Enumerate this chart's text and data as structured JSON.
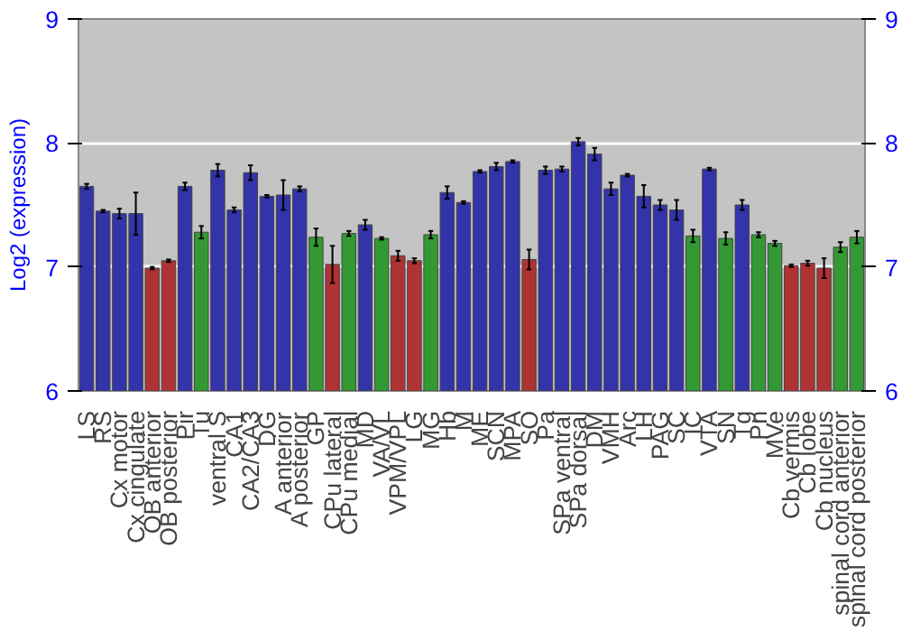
{
  "chart_data": {
    "type": "bar",
    "ylabel": "Log2 (expression)",
    "categories": [
      "LS",
      "RS",
      "Cx motor",
      "Cx cingulate",
      "OB anterior",
      "OB posterior",
      "Pir",
      "Tu",
      "ventral S",
      "CA1",
      "CA2/CA3",
      "DG",
      "A anterior",
      "A posterior",
      "GP",
      "CPu lateral",
      "CPu medial",
      "MD",
      "VA/VL",
      "VPM/VPL",
      "LG",
      "MG",
      "Hb",
      "M",
      "ME",
      "SCN",
      "MPA",
      "SO",
      "Pa",
      "SPa ventral",
      "SPa dorsal",
      "DM",
      "VMH",
      "Arc",
      "LH",
      "PAG",
      "SC",
      "IC",
      "VTA",
      "SN",
      "Tg",
      "Pn",
      "MVe",
      "Cb vermis",
      "Cb lobe",
      "Cb nucleus",
      "spinal cord anterior",
      "spinal cord posterior"
    ],
    "values": [
      7.65,
      7.45,
      7.43,
      7.43,
      6.99,
      7.05,
      7.65,
      7.28,
      7.78,
      7.46,
      7.76,
      7.57,
      7.58,
      7.63,
      7.24,
      7.02,
      7.27,
      7.34,
      7.23,
      7.09,
      7.05,
      7.26,
      7.6,
      7.52,
      7.77,
      7.81,
      7.85,
      7.06,
      7.78,
      7.79,
      8.01,
      7.91,
      7.63,
      7.74,
      7.57,
      7.5,
      7.46,
      7.25,
      7.79,
      7.23,
      7.5,
      7.26,
      7.19,
      7.01,
      7.03,
      6.99,
      7.16,
      7.24
    ],
    "errors": [
      0.02,
      0.01,
      0.04,
      0.17,
      0.01,
      0.01,
      0.03,
      0.05,
      0.05,
      0.02,
      0.06,
      0.01,
      0.12,
      0.02,
      0.07,
      0.15,
      0.02,
      0.04,
      0.01,
      0.04,
      0.02,
      0.03,
      0.05,
      0.01,
      0.01,
      0.03,
      0.01,
      0.08,
      0.03,
      0.02,
      0.03,
      0.05,
      0.05,
      0.01,
      0.09,
      0.04,
      0.08,
      0.05,
      0.01,
      0.05,
      0.04,
      0.02,
      0.02,
      0.01,
      0.02,
      0.08,
      0.04,
      0.05
    ],
    "colors": [
      "#3333aa",
      "#3333aa",
      "#3333aa",
      "#3333aa",
      "#b03333",
      "#b03333",
      "#3333aa",
      "#339933",
      "#3333aa",
      "#3333aa",
      "#3333aa",
      "#3333aa",
      "#3333aa",
      "#3333aa",
      "#339933",
      "#b03333",
      "#339933",
      "#3333aa",
      "#339933",
      "#b03333",
      "#b03333",
      "#339933",
      "#3333aa",
      "#3333aa",
      "#3333aa",
      "#3333aa",
      "#3333aa",
      "#b03333",
      "#3333aa",
      "#3333aa",
      "#3333aa",
      "#3333aa",
      "#3333aa",
      "#3333aa",
      "#3333aa",
      "#3333aa",
      "#3333aa",
      "#339933",
      "#3333aa",
      "#339933",
      "#3333aa",
      "#339933",
      "#339933",
      "#b03333",
      "#b03333",
      "#b03333",
      "#339933",
      "#339933"
    ],
    "ylim": [
      6,
      9
    ],
    "yticks": [
      6,
      7,
      8,
      9
    ],
    "y2lim": [
      6,
      9
    ],
    "y2ticks": [
      6,
      7,
      8,
      9
    ],
    "grid": "y"
  }
}
